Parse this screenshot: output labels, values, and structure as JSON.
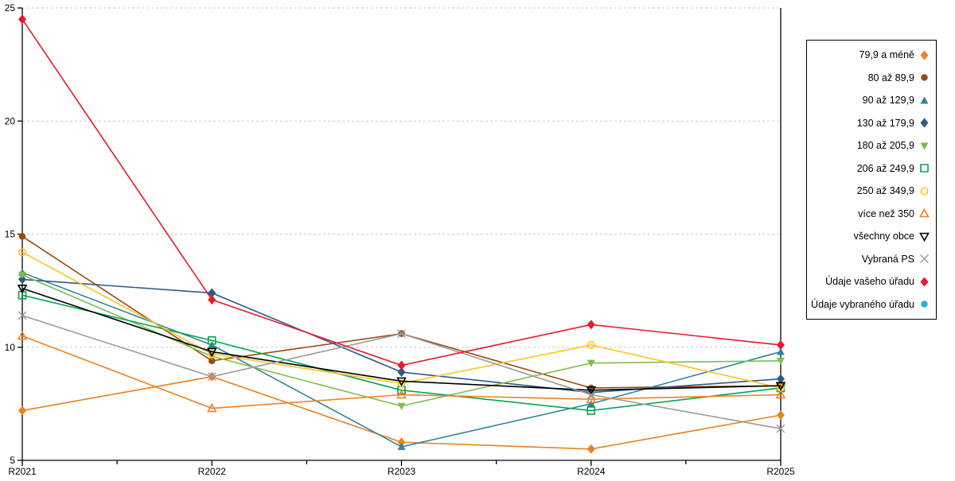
{
  "chart_data": {
    "type": "line",
    "categories": [
      "R2021",
      "R2022",
      "R2023",
      "R2024",
      "R2025"
    ],
    "title": "",
    "xlabel": "",
    "ylabel": "",
    "ylim": [
      5,
      25
    ],
    "yticks": [
      5,
      10,
      15,
      20,
      25
    ],
    "grid": "horizontal dashed gridlines at 10,15,20,25",
    "legend_position": "right",
    "series": [
      {
        "name": "79,9 a méně",
        "color": "#E8821E",
        "marker": "diamond",
        "filled": true,
        "values": [
          7.2,
          8.7,
          5.8,
          5.5,
          7.0
        ]
      },
      {
        "name": "80 až 89,9",
        "color": "#9A4A0D",
        "marker": "circle",
        "filled": true,
        "values": [
          14.9,
          9.4,
          10.6,
          8.2,
          8.3
        ]
      },
      {
        "name": "90 až 129,9",
        "color": "#31849B",
        "marker": "triangle-up",
        "filled": true,
        "values": [
          13.3,
          10.1,
          5.6,
          7.5,
          9.8
        ]
      },
      {
        "name": "130 až 179,9",
        "color": "#2E5A87",
        "marker": "diamond",
        "filled": true,
        "values": [
          13.0,
          12.4,
          8.9,
          8.0,
          8.6
        ]
      },
      {
        "name": "180 až 205,9",
        "color": "#7DBE4E",
        "marker": "triangle-down",
        "filled": true,
        "values": [
          13.2,
          9.6,
          7.4,
          9.3,
          9.4
        ]
      },
      {
        "name": "206 až 249,9",
        "color": "#00A650",
        "marker": "square",
        "filled": false,
        "values": [
          12.3,
          10.3,
          8.1,
          7.2,
          8.2
        ]
      },
      {
        "name": "250 až 349,9",
        "color": "#FFC320",
        "marker": "circle",
        "filled": false,
        "values": [
          14.2,
          9.7,
          8.4,
          10.1,
          8.2
        ]
      },
      {
        "name": "více než 350",
        "color": "#F08223",
        "marker": "triangle-up",
        "filled": false,
        "values": [
          10.5,
          7.3,
          7.9,
          7.7,
          7.9
        ]
      },
      {
        "name": "všechny obce",
        "color": "#000000",
        "marker": "triangle-down",
        "filled": false,
        "values": [
          12.6,
          9.8,
          8.5,
          8.1,
          8.3
        ]
      },
      {
        "name": "Vybraná PS",
        "color": "#9B9B9B",
        "marker": "x",
        "filled": false,
        "values": [
          11.4,
          8.7,
          10.6,
          7.9,
          6.4
        ]
      },
      {
        "name": "Údaje vašeho úřadu",
        "color": "#E8192C",
        "marker": "diamond",
        "filled": true,
        "values": [
          24.5,
          12.1,
          9.2,
          11.0,
          10.1
        ]
      },
      {
        "name": "Údaje vybraného úřadu",
        "color": "#29ABE2",
        "marker": "circle",
        "filled": true,
        "values": []
      }
    ]
  }
}
